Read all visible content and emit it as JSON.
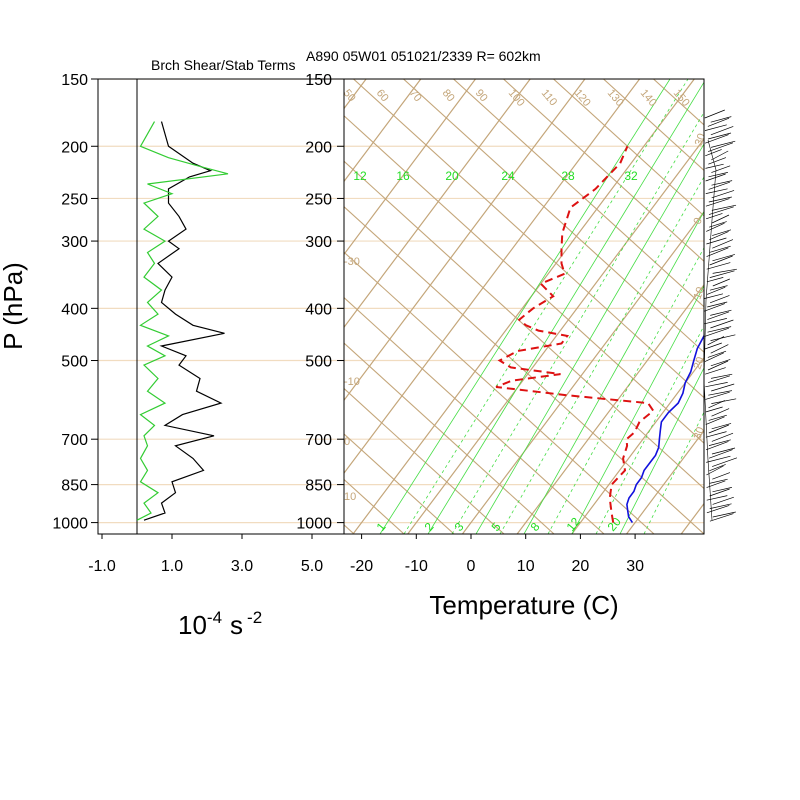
{
  "header": {
    "left_title": "Brch Shear/Stab Terms",
    "right_title": "A890 05W01 051021/2339 R= 602km"
  },
  "axes": {
    "ylabel": "P (hPa)",
    "left_xlabel_base": "10",
    "left_xlabel_exp": "-4",
    "left_xlabel_unit": "s",
    "left_xlabel_unit_exp": "-2",
    "right_xlabel": "Temperature (C)"
  },
  "colors": {
    "isobar": "#f1dcc0",
    "skew": "#c4a67a",
    "mixing": "#44dd44",
    "temperature": "#1111dd",
    "dewpoint": "#dd1111",
    "shear": "#000000",
    "stability": "#33cc33"
  },
  "chart_data": [
    {
      "type": "line",
      "title": "Brch Shear/Stab Terms",
      "ylabel": "P (hPa)",
      "xlabel": "10-4 s -2",
      "xlim": [
        -1.0,
        5.0
      ],
      "ylim": [
        1000,
        150
      ],
      "y_scale": "log",
      "x_ticks": [
        -1.0,
        1.0,
        3.0,
        5.0
      ],
      "x_tick_labels": [
        "-1.0",
        "1.0",
        "3.0",
        "5.0"
      ],
      "y_ticks": [
        150,
        200,
        250,
        300,
        400,
        500,
        700,
        850,
        1000
      ],
      "zero_line": 0,
      "series": [
        {
          "key": "shear",
          "color": "#000000",
          "p": [
            180,
            200,
            215,
            222,
            228,
            240,
            255,
            270,
            285,
            300,
            310,
            330,
            350,
            370,
            390,
            410,
            430,
            445,
            470,
            490,
            510,
            540,
            570,
            600,
            630,
            660,
            690,
            720,
            760,
            800,
            840,
            880,
            920,
            960,
            990
          ],
          "x": [
            0.7,
            0.9,
            1.6,
            2.1,
            1.5,
            0.9,
            0.9,
            1.2,
            1.4,
            0.9,
            1.2,
            0.6,
            1.0,
            0.8,
            0.7,
            1.1,
            1.6,
            2.5,
            0.7,
            1.4,
            1.2,
            1.8,
            1.7,
            2.4,
            1.3,
            0.8,
            2.2,
            1.1,
            1.6,
            1.9,
            1.0,
            1.1,
            0.7,
            0.8,
            0.2
          ]
        },
        {
          "key": "stability",
          "color": "#33cc33",
          "p": [
            180,
            200,
            210,
            218,
            225,
            235,
            245,
            255,
            270,
            285,
            300,
            315,
            330,
            350,
            370,
            390,
            410,
            430,
            450,
            470,
            490,
            510,
            540,
            570,
            600,
            630,
            660,
            690,
            720,
            760,
            800,
            840,
            880,
            920,
            960,
            990
          ],
          "x": [
            0.5,
            0.1,
            0.9,
            1.8,
            2.6,
            0.3,
            1.0,
            0.2,
            0.6,
            0.2,
            0.8,
            0.3,
            0.5,
            0.2,
            0.7,
            0.3,
            0.6,
            0.1,
            0.9,
            0.3,
            0.8,
            0.2,
            0.6,
            0.3,
            0.8,
            0.1,
            0.5,
            0.2,
            0.3,
            0.1,
            0.3,
            0.1,
            0.6,
            0.2,
            0.4,
            0.0
          ]
        }
      ]
    },
    {
      "type": "line",
      "title": "A890 05W01 051021/2339 R= 602km",
      "xlabel": "Temperature (C)",
      "ylabel": "P (hPa)",
      "chart_kind": "skew-T log-p",
      "xlim": [
        -24,
        34
      ],
      "ylim": [
        1000,
        150
      ],
      "y_scale": "log",
      "x_ticks": [
        -20,
        -10,
        0,
        10,
        20,
        30
      ],
      "y_ticks": [
        150,
        200,
        250,
        300,
        400,
        500,
        700,
        850,
        1000
      ],
      "series": [
        {
          "key": "temperature",
          "color": "#1111dd",
          "style": "solid",
          "p": [
            1000,
            975,
            950,
            925,
            900,
            875,
            850,
            825,
            800,
            775,
            750,
            725,
            700,
            675,
            650,
            625,
            600,
            575,
            550,
            525,
            500,
            475,
            450,
            425,
            400,
            375,
            350,
            325,
            300,
            275,
            250,
            225,
            200,
            175
          ],
          "t": [
            29.5,
            28.0,
            27.0,
            26.0,
            25.5,
            25.5,
            25.0,
            25.0,
            24.5,
            24.5,
            24.5,
            24.0,
            23.0,
            22.0,
            21.0,
            21.0,
            21.5,
            21.0,
            20.0,
            19.5,
            18.5,
            17.5,
            17.0,
            16.0,
            14.0,
            12.0,
            10.5,
            9.0,
            7.0,
            5.5,
            4.0,
            3.0,
            1.0,
            0.0
          ]
        },
        {
          "key": "dewpoint",
          "color": "#dd1111",
          "style": "dashed",
          "p": [
            1000,
            975,
            950,
            925,
            900,
            850,
            800,
            760,
            720,
            700,
            680,
            650,
            620,
            600,
            580,
            560,
            545,
            530,
            515,
            500,
            480,
            465,
            450,
            440,
            430,
            420,
            400,
            380,
            360,
            345,
            330,
            310,
            290,
            260,
            240,
            215,
            200
          ],
          "t": [
            26.0,
            25.0,
            24.0,
            23.0,
            22.0,
            20.5,
            21.0,
            19.0,
            18.0,
            17.0,
            17.5,
            17.0,
            18.0,
            16.0,
            0.0,
            -14.0,
            -12.0,
            -4.0,
            -14.0,
            -17.0,
            -15.0,
            -8.0,
            -8.0,
            -14.0,
            -17.0,
            -19.0,
            -18.0,
            -16.0,
            -20.0,
            -17.0,
            -19.0,
            -21.0,
            -23.0,
            -25.0,
            -23.0,
            -22.0,
            -23.0
          ]
        }
      ],
      "mixing_ratio_labels": [
        "12",
        "16",
        "20",
        "24",
        "28",
        "32"
      ],
      "bottom_labels": [
        "1",
        "2",
        "3",
        "5",
        "8",
        "12",
        "20"
      ],
      "wind_barbs": "right margin, 150-1000 hPa"
    }
  ]
}
